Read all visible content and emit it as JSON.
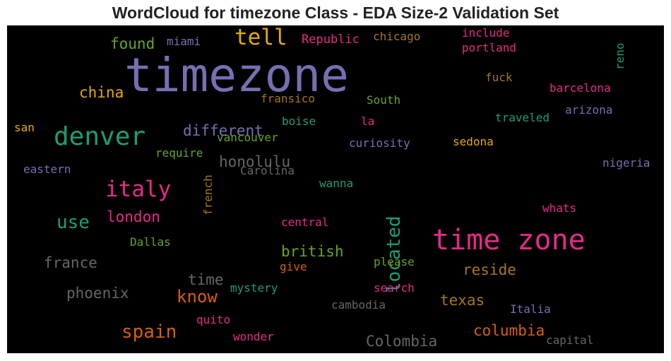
{
  "chart_data": {
    "type": "wordcloud",
    "title": "WordCloud for timezone Class - EDA Size-2 Validation Set",
    "background": "#000000",
    "words": [
      {
        "text": "timezone",
        "size": 66,
        "color": "#7570b3",
        "vertical": false
      },
      {
        "text": "time zone",
        "size": 40,
        "color": "#e7298a",
        "vertical": false
      },
      {
        "text": "denver",
        "size": 36,
        "color": "#1b9e77",
        "vertical": false
      },
      {
        "text": "italy",
        "size": 31,
        "color": "#e7298a",
        "vertical": false
      },
      {
        "text": "tell",
        "size": 31,
        "color": "#e6ab02",
        "vertical": false
      },
      {
        "text": "located",
        "size": 26,
        "color": "#1b9e77",
        "vertical": true
      },
      {
        "text": "spain",
        "size": 26,
        "color": "#d95f02",
        "vertical": false
      },
      {
        "text": "use",
        "size": 26,
        "color": "#1b9e77",
        "vertical": false
      },
      {
        "text": "know",
        "size": 24,
        "color": "#d95f02",
        "vertical": false
      },
      {
        "text": "different",
        "size": 21,
        "color": "#7570b3",
        "vertical": false
      },
      {
        "text": "honolulu",
        "size": 21,
        "color": "#666666",
        "vertical": false
      },
      {
        "text": "london",
        "size": 21,
        "color": "#e7298a",
        "vertical": false
      },
      {
        "text": "france",
        "size": 21,
        "color": "#666666",
        "vertical": false
      },
      {
        "text": "phoenix",
        "size": 21,
        "color": "#666666",
        "vertical": false
      },
      {
        "text": "british",
        "size": 21,
        "color": "#66a61e",
        "vertical": false
      },
      {
        "text": "columbia",
        "size": 21,
        "color": "#d95f02",
        "vertical": false
      },
      {
        "text": "Colombia",
        "size": 21,
        "color": "#666666",
        "vertical": false
      },
      {
        "text": "reside",
        "size": 21,
        "color": "#a6761d",
        "vertical": false
      },
      {
        "text": "found",
        "size": 21,
        "color": "#66a61e",
        "vertical": false
      },
      {
        "text": "china",
        "size": 21,
        "color": "#e6ab02",
        "vertical": false
      },
      {
        "text": "time",
        "size": 21,
        "color": "#666666",
        "vertical": false
      },
      {
        "text": "texas",
        "size": 21,
        "color": "#a6761d",
        "vertical": false
      },
      {
        "text": "miami",
        "size": 16,
        "color": "#7570b3",
        "vertical": false
      },
      {
        "text": "Republic",
        "size": 17,
        "color": "#e7298a",
        "vertical": false
      },
      {
        "text": "chicago",
        "size": 16,
        "color": "#a6761d",
        "vertical": false
      },
      {
        "text": "include",
        "size": 16,
        "color": "#e7298a",
        "vertical": false
      },
      {
        "text": "portland",
        "size": 16,
        "color": "#e7298a",
        "vertical": false
      },
      {
        "text": "reno",
        "size": 16,
        "color": "#1b9e77",
        "vertical": true
      },
      {
        "text": "fuck",
        "size": 16,
        "color": "#a6761d",
        "vertical": false
      },
      {
        "text": "barcelona",
        "size": 16,
        "color": "#e7298a",
        "vertical": false
      },
      {
        "text": "fransico",
        "size": 16,
        "color": "#a6761d",
        "vertical": false
      },
      {
        "text": "South",
        "size": 16,
        "color": "#66a61e",
        "vertical": false
      },
      {
        "text": "arizona",
        "size": 16,
        "color": "#7570b3",
        "vertical": false
      },
      {
        "text": "traveled",
        "size": 16,
        "color": "#1b9e77",
        "vertical": false
      },
      {
        "text": "san",
        "size": 16,
        "color": "#e6ab02",
        "vertical": false
      },
      {
        "text": "boise",
        "size": 16,
        "color": "#1b9e77",
        "vertical": false
      },
      {
        "text": "la",
        "size": 16,
        "color": "#e7298a",
        "vertical": false
      },
      {
        "text": "vancouver",
        "size": 16,
        "color": "#66a61e",
        "vertical": false
      },
      {
        "text": "curiosity",
        "size": 16,
        "color": "#7570b3",
        "vertical": false
      },
      {
        "text": "sedona",
        "size": 16,
        "color": "#e6ab02",
        "vertical": false
      },
      {
        "text": "require",
        "size": 16,
        "color": "#66a61e",
        "vertical": false
      },
      {
        "text": "Carolina",
        "size": 16,
        "color": "#666666",
        "vertical": false
      },
      {
        "text": "eastern",
        "size": 16,
        "color": "#7570b3",
        "vertical": false
      },
      {
        "text": "nigeria",
        "size": 16,
        "color": "#7570b3",
        "vertical": false
      },
      {
        "text": "french",
        "size": 16,
        "color": "#a6761d",
        "vertical": true
      },
      {
        "text": "wanna",
        "size": 16,
        "color": "#1b9e77",
        "vertical": false
      },
      {
        "text": "whats",
        "size": 16,
        "color": "#e7298a",
        "vertical": false
      },
      {
        "text": "central",
        "size": 16,
        "color": "#e7298a",
        "vertical": false
      },
      {
        "text": "Dallas",
        "size": 16,
        "color": "#66a61e",
        "vertical": false
      },
      {
        "text": "give",
        "size": 16,
        "color": "#d95f02",
        "vertical": false
      },
      {
        "text": "please",
        "size": 16,
        "color": "#66a61e",
        "vertical": false
      },
      {
        "text": "mystery",
        "size": 16,
        "color": "#1b9e77",
        "vertical": false
      },
      {
        "text": "search",
        "size": 16,
        "color": "#e7298a",
        "vertical": false
      },
      {
        "text": "cambodia",
        "size": 16,
        "color": "#666666",
        "vertical": false
      },
      {
        "text": "Italia",
        "size": 16,
        "color": "#7570b3",
        "vertical": false
      },
      {
        "text": "quito",
        "size": 16,
        "color": "#e7298a",
        "vertical": false
      },
      {
        "text": "wonder",
        "size": 16,
        "color": "#e7298a",
        "vertical": false
      },
      {
        "text": "capital",
        "size": 16,
        "color": "#666666",
        "vertical": false
      }
    ]
  }
}
